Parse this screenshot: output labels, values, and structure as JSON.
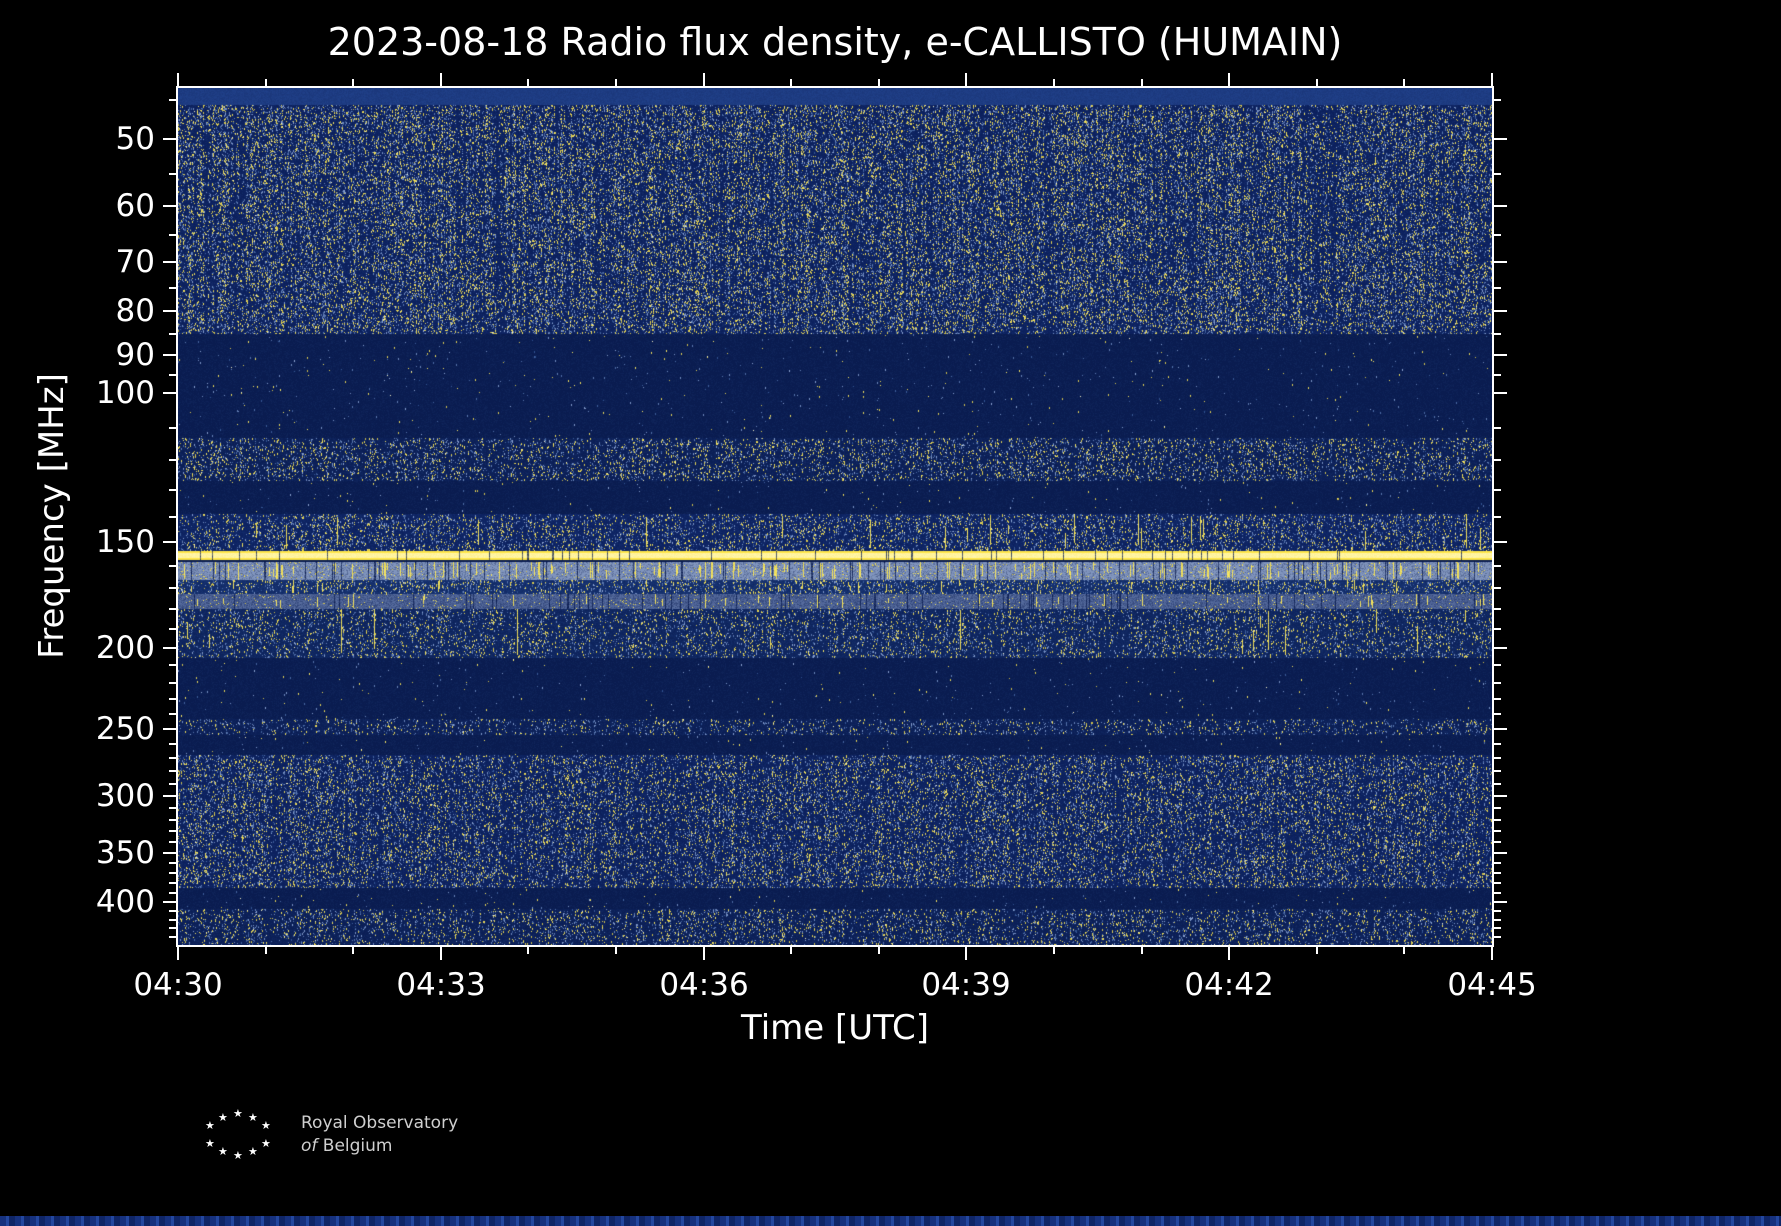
{
  "chart_data": {
    "type": "heatmap",
    "title": "2023-08-18 Radio flux density, e-CALLISTO (HUMAIN)",
    "xlabel": "Time [UTC]",
    "ylabel": "Frequency [MHz]",
    "x_axis": {
      "start": "04:30",
      "end": "04:45",
      "major_ticks": [
        "04:30",
        "04:33",
        "04:36",
        "04:39",
        "04:42",
        "04:45"
      ],
      "total_minutes": 15,
      "minor_tick_minutes": 1
    },
    "y_axis": {
      "scale": "log",
      "range_mhz": [
        43.5,
        450
      ],
      "major_ticks_mhz": [
        50,
        60,
        70,
        80,
        90,
        100,
        150,
        200,
        250,
        300,
        350,
        400
      ],
      "minor_ticks_mhz": [
        45,
        55,
        65,
        75,
        85,
        95,
        110,
        120,
        130,
        140,
        160,
        170,
        180,
        190,
        210,
        220,
        230,
        240,
        260,
        270,
        280,
        290,
        310,
        320,
        330,
        340,
        360,
        370,
        380,
        390,
        410,
        420,
        430,
        440
      ]
    },
    "colors": {
      "background_quiet": "#0a1c50",
      "noise_blue_dim": "#2f5190",
      "noise_blue_bright": "#8fa6d4",
      "noise_yellow_dim": "#c9b945",
      "noise_yellow_bright": "#ffee66",
      "noise_white": "#f8f4c8",
      "rfi_line": "#ffe74a",
      "rfi_core": "#fff7b0"
    },
    "features": [
      {
        "label": "top calibration strip",
        "kind": "strip",
        "f_lo": 43.5,
        "f_hi": 45.6,
        "color": "#21418a"
      },
      {
        "label": "45-85 MHz broadband galactic/ionospheric noise",
        "kind": "speckle",
        "f_lo": 45.6,
        "f_hi": 85,
        "base": "#0d2260",
        "yellow": 0.065,
        "blue": 0.105
      },
      {
        "label": "85-113 MHz quiet (FM band blanked)",
        "kind": "speckle",
        "f_lo": 85,
        "f_hi": 113,
        "base": "#0a1c50",
        "yellow": 0.0015,
        "blue": 0.003
      },
      {
        "label": "113-127 MHz airband activity",
        "kind": "speckle",
        "f_lo": 113,
        "f_hi": 127,
        "base": "#0c2058",
        "yellow": 0.045,
        "blue": 0.075
      },
      {
        "label": "127-139 MHz quiet",
        "kind": "speckle",
        "f_lo": 127,
        "f_hi": 139,
        "base": "#0a1c50",
        "yellow": 0.0015,
        "blue": 0.003
      },
      {
        "label": "139-153 MHz activity",
        "kind": "speckle",
        "f_lo": 139,
        "f_hi": 153.5,
        "base": "#0e2464",
        "yellow": 0.05,
        "blue": 0.085,
        "streak_yellow": 0.02
      },
      {
        "label": "~156 MHz continuous RFI carrier (bright yellow line)",
        "kind": "rfi_line",
        "f_lo": 153.9,
        "f_hi": 157.3,
        "color": "#ffe74a",
        "core": "#fff7b0",
        "nick": 0.035
      },
      {
        "label": "158-166 MHz pager/burst band (light with vertical yellow bursts)",
        "kind": "burst_band",
        "f_lo": 158.6,
        "f_hi": 166.5,
        "base": "#8094bc",
        "noise_yellow": 0.05,
        "streak_yellow": 0.11,
        "streak_dark": 0.06
      },
      {
        "label": "166-173 MHz activity",
        "kind": "speckle",
        "f_lo": 166.5,
        "f_hi": 173,
        "base": "#15306e",
        "yellow": 0.055,
        "blue": 0.09,
        "streak_yellow": 0.02
      },
      {
        "label": "173-180 MHz hazy band",
        "kind": "burst_band",
        "f_lo": 173,
        "f_hi": 180,
        "base": "#4a5f92",
        "noise_yellow": 0.035,
        "streak_yellow": 0.03,
        "streak_dark": 0.05
      },
      {
        "label": "180-206 MHz activity",
        "kind": "speckle",
        "f_lo": 180,
        "f_hi": 206,
        "base": "#0f2660",
        "yellow": 0.042,
        "blue": 0.07,
        "streak_yellow": 0.012
      },
      {
        "label": "206-243 MHz quiet",
        "kind": "speckle",
        "f_lo": 206,
        "f_hi": 243,
        "base": "#0a1c50",
        "yellow": 0.0015,
        "blue": 0.003
      },
      {
        "label": "243-254 MHz weak narrow band",
        "kind": "speckle",
        "f_lo": 243,
        "f_hi": 254,
        "base": "#0c2058",
        "yellow": 0.028,
        "blue": 0.06
      },
      {
        "label": "254-268 MHz quiet",
        "kind": "speckle",
        "f_lo": 254,
        "f_hi": 268,
        "base": "#0a1c50",
        "yellow": 0.0015,
        "blue": 0.003
      },
      {
        "label": "268-385 MHz broadband noise",
        "kind": "speckle",
        "f_lo": 268,
        "f_hi": 385,
        "base": "#0d2260",
        "yellow": 0.05,
        "blue": 0.085
      },
      {
        "label": "385-408 MHz quiet",
        "kind": "speckle",
        "f_lo": 385,
        "f_hi": 408,
        "base": "#0a1c50",
        "yellow": 0.0015,
        "blue": 0.003
      },
      {
        "label": "408-450 MHz activity",
        "kind": "speckle",
        "f_lo": 408,
        "f_hi": 450,
        "base": "#0c2058",
        "yellow": 0.038,
        "blue": 0.065
      }
    ]
  },
  "logo": {
    "stars_glyph": "★",
    "star_positions": [
      [
        0,
        12
      ],
      [
        13,
        4
      ],
      [
        28,
        0
      ],
      [
        43,
        4
      ],
      [
        56,
        12
      ],
      [
        0,
        30
      ],
      [
        13,
        38
      ],
      [
        28,
        42
      ],
      [
        43,
        38
      ],
      [
        56,
        30
      ]
    ],
    "line1": "Royal Observatory",
    "line2_word1": "of",
    "line2_word2": "Belgium"
  }
}
